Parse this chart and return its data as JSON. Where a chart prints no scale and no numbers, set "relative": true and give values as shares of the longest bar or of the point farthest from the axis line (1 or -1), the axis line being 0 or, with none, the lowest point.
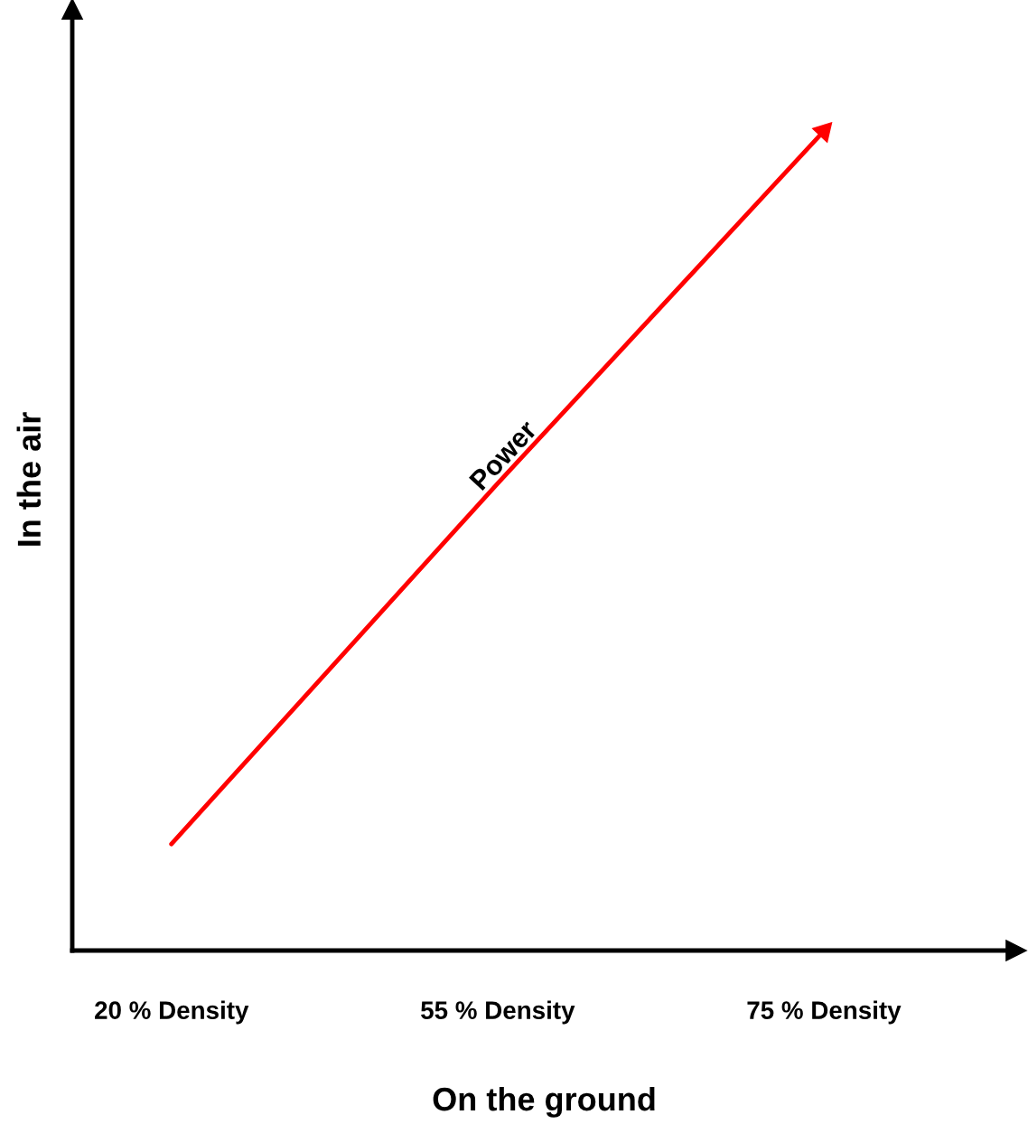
{
  "chart_data": {
    "type": "line",
    "xlabel": "On the ground",
    "ylabel": "In the air",
    "relative": true,
    "tick_labels": "x",
    "categories": [
      "20 % Density",
      "55 % Density",
      "75 % Density"
    ],
    "series": [
      {
        "name": "Power",
        "color": "#ff0000",
        "values": [
          0.13,
          0.57,
          1.0
        ]
      }
    ]
  }
}
